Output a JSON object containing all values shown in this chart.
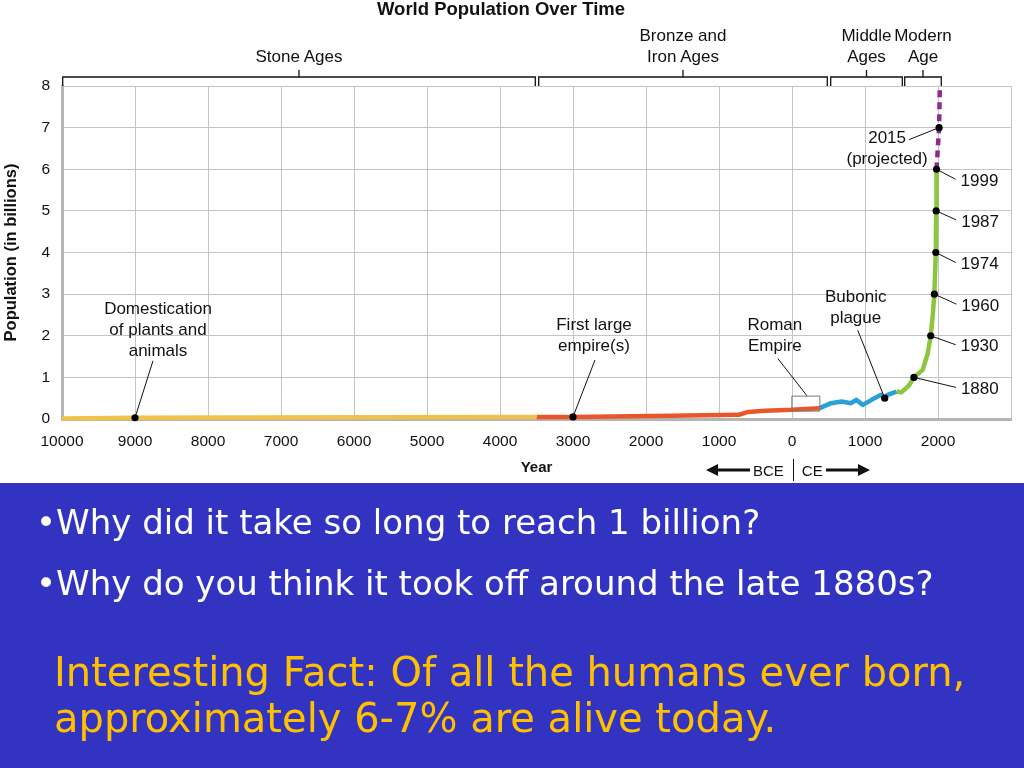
{
  "chart_data": {
    "type": "line",
    "title": "World Population Over Time",
    "xlabel": "Year",
    "ylabel": "Population (in billions)",
    "xlim": [
      -10000,
      3000
    ],
    "ylim": [
      0,
      8
    ],
    "xticks": [
      {
        "value": -10000,
        "label": "10000"
      },
      {
        "value": -9000,
        "label": "9000"
      },
      {
        "value": -8000,
        "label": "8000"
      },
      {
        "value": -7000,
        "label": "7000"
      },
      {
        "value": -6000,
        "label": "6000"
      },
      {
        "value": -5000,
        "label": "5000"
      },
      {
        "value": -4000,
        "label": "4000"
      },
      {
        "value": -3000,
        "label": "3000"
      },
      {
        "value": -2000,
        "label": "2000"
      },
      {
        "value": -1000,
        "label": "1000"
      },
      0,
      1000,
      2000,
      {
        "value": 3000,
        "label": null
      }
    ],
    "yticks": [
      0,
      1,
      2,
      3,
      4,
      5,
      6,
      7,
      8
    ],
    "grid": true,
    "legend": false,
    "series": [
      {
        "type": "scatter",
        "color": "#000000",
        "marker": "circle",
        "x": [
          -9000,
          -3000,
          1270,
          1670,
          1900,
          1950,
          1970,
          1975,
          1980,
          2015
        ],
        "values": [
          0.03,
          0.05,
          0.5,
          1,
          2,
          3,
          4,
          5,
          6,
          7
        ]
      },
      {
        "type": "line",
        "color": "#f0c24b",
        "marker": "none",
        "line_style": "solid",
        "x": [
          -10000,
          -9000,
          -3500
        ],
        "values": [
          0.01,
          0.03,
          0.05
        ]
      },
      {
        "type": "line",
        "color": "#e8562a",
        "marker": "none",
        "line_style": "solid",
        "x": [
          -3500,
          -3000,
          -1650,
          -730,
          -600,
          -370,
          0,
          380
        ],
        "values": [
          0.05,
          0.05,
          0.08,
          0.1,
          0.17,
          0.2,
          0.22,
          0.26
        ]
      },
      {
        "type": "line",
        "color": "#2a9fd8",
        "marker": "none",
        "line_style": "solid",
        "x": [
          380,
          535,
          680,
          810,
          880,
          970,
          1090,
          1220,
          1270,
          1310,
          1430
        ],
        "values": [
          0.26,
          0.38,
          0.42,
          0.38,
          0.46,
          0.34,
          0.46,
          0.58,
          0.5,
          0.58,
          0.66
        ]
      },
      {
        "type": "line",
        "color": "#8cc63e",
        "marker": "none",
        "line_style": "solid",
        "x": [
          1430,
          1500,
          1600,
          1670,
          1790,
          1860,
          1900,
          1927,
          1950,
          1970,
          1975,
          1980
        ],
        "values": [
          0.66,
          0.64,
          0.8,
          1,
          1.18,
          1.58,
          2,
          2.46,
          3,
          4,
          5,
          6
        ]
      },
      {
        "type": "line",
        "color": "#8e2a8a",
        "marker": "none",
        "line_style": "dashed",
        "x": [
          1980,
          2015,
          2025
        ],
        "values": [
          6,
          7,
          8
        ]
      }
    ],
    "annotations": [
      {
        "text": "Domestication\nof plants and\nanimals",
        "x": -9000,
        "y": 0.03
      },
      {
        "text": "First large\nempire(s)",
        "x": -3000,
        "y": 0.05
      },
      {
        "text": "Roman\nEmpire",
        "x": 190,
        "y": 0.37
      },
      {
        "text": "Bubonic\nplague",
        "x": 1270,
        "y": 0.5
      },
      {
        "text": "1880",
        "x": 1670,
        "y": 1
      },
      {
        "text": "1930",
        "x": 1900,
        "y": 2
      },
      {
        "text": "1960",
        "x": 1950,
        "y": 3
      },
      {
        "text": "1974",
        "x": 1970,
        "y": 4
      },
      {
        "text": "1987",
        "x": 1975,
        "y": 5
      },
      {
        "text": "1999",
        "x": 1980,
        "y": 6
      },
      {
        "text": "2015\n(projected)",
        "x": 2015,
        "y": 7
      },
      "Stone Ages",
      "Bronze and\nIron Ages",
      "Middle\nAges",
      "Modern\nAge",
      "BCE",
      "CE",
      "•Why did it take so long to reach 1 billion?",
      "•Why do you think it took off around the late 1880s?",
      "Interesting Fact: Of all the humans ever born,\napproximately 6-7% are alive today."
    ]
  }
}
